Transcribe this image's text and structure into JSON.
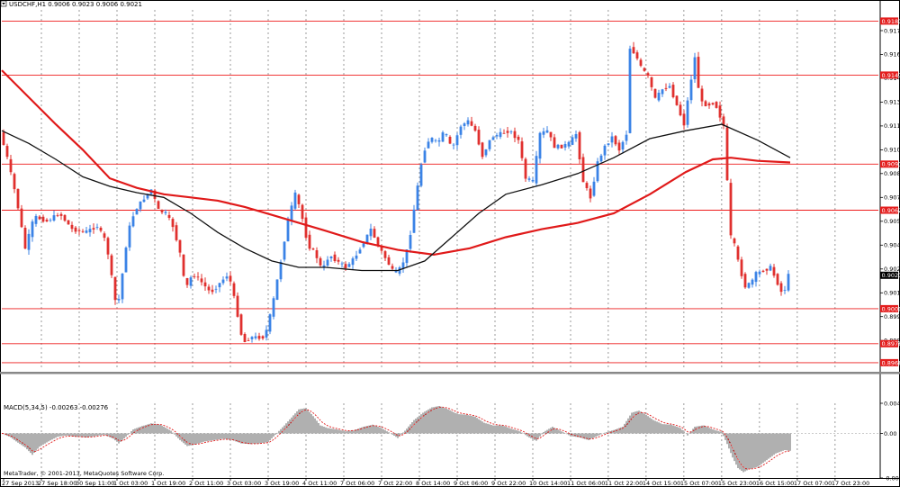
{
  "window": {
    "main_title": "USDCHF,H1  0.9006 0.9023 0.9006 0.9021",
    "macd_title": "MACD(5,34,5) -0.00263 -0.00276",
    "copyright": "MetaTrader, © 2001-2013, MetaQuotes Software Corp."
  },
  "colors": {
    "background": "#ffffff",
    "bull_candle": "#3b83e6",
    "bear_candle": "#e0302e",
    "ma_slow": "#e01a1a",
    "ma_fast": "#111111",
    "level_line": "#ee1c1c",
    "grid": "#555555",
    "macd_hist": "#606060",
    "macd_signal": "#e01a1a",
    "price_tag": "#e41e1e",
    "current_tag": "#000000"
  },
  "chart_data": [
    {
      "type": "candlestick",
      "symbol": "USDCHF",
      "timeframe": "H1",
      "ohlc_header": {
        "open": 0.9006,
        "high": 0.9023,
        "low": 0.9006,
        "close": 0.9021
      },
      "ylim": [
        0.8962,
        0.9188
      ],
      "y_ticks": [
        "0.9175",
        "0.9160",
        "0.9145",
        "0.9130",
        "0.9115",
        "0.9100",
        "0.9085",
        "0.9070",
        "0.9055",
        "0.9040",
        "0.9025",
        "0.9010",
        "0.8995",
        "0.8980"
      ],
      "x_ticks": [
        "27 Sep 2013",
        "27 Sep 18:00",
        "30 Sep 11:00",
        "1 Oct 03:00",
        "1 Oct 19:00",
        "2 Oct 11:00",
        "3 Oct 03:00",
        "3 Oct 19:00",
        "4 Oct 11:00",
        "7 Oct 06:00",
        "7 Oct 22:00",
        "8 Oct 14:00",
        "9 Oct 06:00",
        "9 Oct 22:00",
        "10 Oct 14:00",
        "11 Oct 06:00",
        "11 Oct 22:00",
        "14 Oct 15:00",
        "15 Oct 07:00",
        "15 Oct 23:00",
        "16 Oct 15:00",
        "17 Oct 07:00",
        "17 Oct 23:00"
      ],
      "grid": true,
      "horizontal_levels": [
        "0.9181",
        "0.9147",
        "0.9091",
        "0.9062",
        "0.9000",
        "0.8978",
        "0.8966"
      ],
      "current_price": "0.9021",
      "price_path": [
        [
          0,
          0.9111
        ],
        [
          8,
          0.9095
        ],
        [
          18,
          0.907
        ],
        [
          28,
          0.9038
        ],
        [
          38,
          0.9058
        ],
        [
          52,
          0.9055
        ],
        [
          66,
          0.906
        ],
        [
          80,
          0.905
        ],
        [
          94,
          0.9048
        ],
        [
          108,
          0.9052
        ],
        [
          118,
          0.9042
        ],
        [
          124,
          0.902
        ],
        [
          130,
          0.8998
        ],
        [
          136,
          0.9022
        ],
        [
          142,
          0.9048
        ],
        [
          150,
          0.9062
        ],
        [
          158,
          0.9068
        ],
        [
          168,
          0.9075
        ],
        [
          176,
          0.9062
        ],
        [
          184,
          0.906
        ],
        [
          192,
          0.9052
        ],
        [
          200,
          0.9035
        ],
        [
          206,
          0.9012
        ],
        [
          214,
          0.9022
        ],
        [
          222,
          0.9018
        ],
        [
          234,
          0.901
        ],
        [
          244,
          0.9016
        ],
        [
          254,
          0.9022
        ],
        [
          262,
          0.9002
        ],
        [
          270,
          0.8978
        ],
        [
          278,
          0.8982
        ],
        [
          286,
          0.8982
        ],
        [
          294,
          0.8982
        ],
        [
          302,
          0.9
        ],
        [
          312,
          0.903
        ],
        [
          320,
          0.9056
        ],
        [
          328,
          0.9072
        ],
        [
          334,
          0.9062
        ],
        [
          342,
          0.904
        ],
        [
          350,
          0.9035
        ],
        [
          358,
          0.9024
        ],
        [
          366,
          0.9034
        ],
        [
          374,
          0.903
        ],
        [
          384,
          0.9026
        ],
        [
          394,
          0.9032
        ],
        [
          404,
          0.9042
        ],
        [
          412,
          0.905
        ],
        [
          420,
          0.904
        ],
        [
          428,
          0.9032
        ],
        [
          438,
          0.9022
        ],
        [
          446,
          0.9026
        ],
        [
          454,
          0.904
        ],
        [
          462,
          0.907
        ],
        [
          470,
          0.9098
        ],
        [
          478,
          0.9108
        ],
        [
          486,
          0.9104
        ],
        [
          494,
          0.9112
        ],
        [
          502,
          0.91
        ],
        [
          512,
          0.9115
        ],
        [
          520,
          0.9118
        ],
        [
          528,
          0.9112
        ],
        [
          536,
          0.9096
        ],
        [
          546,
          0.9108
        ],
        [
          556,
          0.911
        ],
        [
          566,
          0.9112
        ],
        [
          576,
          0.9106
        ],
        [
          584,
          0.9082
        ],
        [
          592,
          0.908
        ],
        [
          600,
          0.911
        ],
        [
          608,
          0.9112
        ],
        [
          616,
          0.9102
        ],
        [
          624,
          0.9102
        ],
        [
          632,
          0.9104
        ],
        [
          640,
          0.911
        ],
        [
          648,
          0.908
        ],
        [
          656,
          0.907
        ],
        [
          664,
          0.9092
        ],
        [
          672,
          0.9102
        ],
        [
          680,
          0.9108
        ],
        [
          688,
          0.91
        ],
        [
          696,
          0.911
        ],
        [
          700,
          0.9164
        ],
        [
          706,
          0.916
        ],
        [
          712,
          0.9152
        ],
        [
          720,
          0.9146
        ],
        [
          728,
          0.9132
        ],
        [
          736,
          0.9138
        ],
        [
          744,
          0.914
        ],
        [
          752,
          0.9128
        ],
        [
          760,
          0.9116
        ],
        [
          766,
          0.9138
        ],
        [
          772,
          0.9158
        ],
        [
          778,
          0.913
        ],
        [
          786,
          0.9128
        ],
        [
          794,
          0.913
        ],
        [
          802,
          0.9118
        ],
        [
          806,
          0.9112
        ],
        [
          810,
          0.9048
        ],
        [
          816,
          0.904
        ],
        [
          822,
          0.9025
        ],
        [
          828,
          0.9014
        ],
        [
          834,
          0.9016
        ],
        [
          840,
          0.9022
        ],
        [
          848,
          0.9024
        ],
        [
          856,
          0.9026
        ],
        [
          864,
          0.9016
        ],
        [
          870,
          0.9008
        ],
        [
          876,
          0.9021
        ]
      ],
      "series": [
        {
          "kind": "moving_average_slow",
          "points": [
            [
              0,
              0.915
            ],
            [
              30,
              0.9133
            ],
            [
              60,
              0.9116
            ],
            [
              90,
              0.91
            ],
            [
              120,
              0.9082
            ],
            [
              150,
              0.9076
            ],
            [
              180,
              0.9072
            ],
            [
              210,
              0.907
            ],
            [
              240,
              0.9068
            ],
            [
              270,
              0.9064
            ],
            [
              300,
              0.9059
            ],
            [
              330,
              0.9054
            ],
            [
              360,
              0.9049
            ],
            [
              400,
              0.9042
            ],
            [
              440,
              0.9037
            ],
            [
              480,
              0.9034
            ],
            [
              520,
              0.9038
            ],
            [
              560,
              0.9045
            ],
            [
              600,
              0.905
            ],
            [
              640,
              0.9054
            ],
            [
              680,
              0.906
            ],
            [
              720,
              0.9072
            ],
            [
              760,
              0.9086
            ],
            [
              790,
              0.9094
            ],
            [
              810,
              0.9095
            ],
            [
              840,
              0.9093
            ],
            [
              876,
              0.9092
            ]
          ]
        },
        {
          "kind": "moving_average_fast",
          "points": [
            [
              0,
              0.9112
            ],
            [
              30,
              0.9104
            ],
            [
              60,
              0.9094
            ],
            [
              90,
              0.9083
            ],
            [
              120,
              0.9077
            ],
            [
              150,
              0.9073
            ],
            [
              180,
              0.907
            ],
            [
              210,
              0.906
            ],
            [
              240,
              0.9048
            ],
            [
              270,
              0.9038
            ],
            [
              300,
              0.903
            ],
            [
              330,
              0.9026
            ],
            [
              360,
              0.9026
            ],
            [
              400,
              0.9024
            ],
            [
              440,
              0.9024
            ],
            [
              470,
              0.903
            ],
            [
              500,
              0.9045
            ],
            [
              530,
              0.906
            ],
            [
              560,
              0.9072
            ],
            [
              600,
              0.9078
            ],
            [
              640,
              0.9085
            ],
            [
              680,
              0.9095
            ],
            [
              720,
              0.9107
            ],
            [
              760,
              0.9112
            ],
            [
              800,
              0.9116
            ],
            [
              840,
              0.9106
            ],
            [
              876,
              0.9095
            ]
          ]
        }
      ]
    },
    {
      "type": "bar",
      "indicator": "MACD",
      "params": "5,34,5",
      "macd_value": -0.00263,
      "signal_value": -0.00276,
      "ylim": [
        -0.00668,
        0.00451
      ],
      "y_ticks": [
        "0.00451",
        "0.00",
        "-0.00668"
      ],
      "histogram": [
        [
          0,
          0.0
        ],
        [
          10,
          -0.0006
        ],
        [
          18,
          -0.0014
        ],
        [
          26,
          -0.0021
        ],
        [
          34,
          -0.0032
        ],
        [
          42,
          -0.002
        ],
        [
          52,
          -0.0012
        ],
        [
          62,
          -0.0005
        ],
        [
          72,
          -0.0003
        ],
        [
          82,
          -0.0005
        ],
        [
          94,
          -0.0006
        ],
        [
          104,
          -0.0004
        ],
        [
          114,
          -0.0002
        ],
        [
          124,
          -0.0008
        ],
        [
          130,
          -0.0015
        ],
        [
          138,
          -0.0005
        ],
        [
          146,
          0.0006
        ],
        [
          156,
          0.0011
        ],
        [
          166,
          0.0015
        ],
        [
          176,
          0.0013
        ],
        [
          188,
          0.0004
        ],
        [
          198,
          -0.001
        ],
        [
          206,
          -0.0019
        ],
        [
          216,
          -0.0016
        ],
        [
          226,
          -0.0012
        ],
        [
          236,
          -0.001
        ],
        [
          246,
          -0.0008
        ],
        [
          256,
          -0.001
        ],
        [
          266,
          -0.0015
        ],
        [
          276,
          -0.0016
        ],
        [
          286,
          -0.0015
        ],
        [
          296,
          -0.0013
        ],
        [
          304,
          -0.0002
        ],
        [
          314,
          0.0012
        ],
        [
          322,
          0.0024
        ],
        [
          330,
          0.0036
        ],
        [
          338,
          0.0038
        ],
        [
          346,
          0.0026
        ],
        [
          354,
          0.0012
        ],
        [
          362,
          0.0008
        ],
        [
          372,
          0.0006
        ],
        [
          382,
          0.0003
        ],
        [
          392,
          0.0005
        ],
        [
          402,
          0.001
        ],
        [
          412,
          0.0013
        ],
        [
          422,
          0.0008
        ],
        [
          432,
          0.0
        ],
        [
          440,
          -0.0007
        ],
        [
          448,
          0.0004
        ],
        [
          458,
          0.002
        ],
        [
          468,
          0.0031
        ],
        [
          478,
          0.0039
        ],
        [
          486,
          0.0041
        ],
        [
          496,
          0.0036
        ],
        [
          506,
          0.0029
        ],
        [
          516,
          0.0028
        ],
        [
          526,
          0.0025
        ],
        [
          536,
          0.0016
        ],
        [
          546,
          0.0012
        ],
        [
          556,
          0.0012
        ],
        [
          566,
          0.0007
        ],
        [
          576,
          0.0003
        ],
        [
          586,
          -0.0006
        ],
        [
          594,
          -0.0011
        ],
        [
          602,
          0.0002
        ],
        [
          612,
          0.001
        ],
        [
          622,
          0.0003
        ],
        [
          632,
          -0.0004
        ],
        [
          642,
          -0.0006
        ],
        [
          652,
          -0.001
        ],
        [
          660,
          -0.0005
        ],
        [
          670,
          0.0001
        ],
        [
          680,
          0.0005
        ],
        [
          690,
          0.001
        ],
        [
          700,
          0.0031
        ],
        [
          708,
          0.0034
        ],
        [
          716,
          0.0028
        ],
        [
          724,
          0.002
        ],
        [
          734,
          0.0014
        ],
        [
          744,
          0.0013
        ],
        [
          754,
          0.0008
        ],
        [
          762,
          -0.0003
        ],
        [
          770,
          0.001
        ],
        [
          780,
          0.0012
        ],
        [
          790,
          0.0006
        ],
        [
          800,
          0.0002
        ],
        [
          806,
          -0.0016
        ],
        [
          812,
          -0.0036
        ],
        [
          818,
          -0.0052
        ],
        [
          824,
          -0.0058
        ],
        [
          830,
          -0.0054
        ],
        [
          840,
          -0.005
        ],
        [
          850,
          -0.004
        ],
        [
          860,
          -0.003
        ],
        [
          870,
          -0.0025
        ],
        [
          876,
          -0.0026
        ]
      ]
    }
  ]
}
